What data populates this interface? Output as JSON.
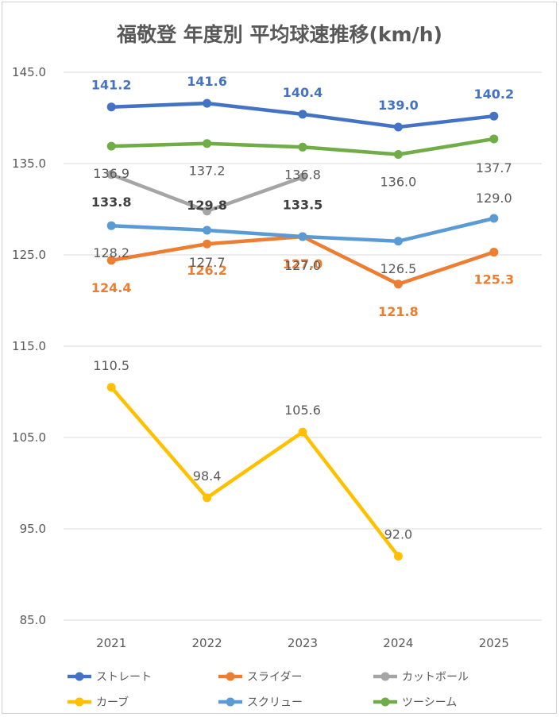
{
  "chart_data": {
    "type": "line",
    "title": "福敬登 年度別 平均球速推移(km/h)",
    "xlabel": "",
    "ylabel": "",
    "categories": [
      "2021",
      "2022",
      "2023",
      "2024",
      "2025"
    ],
    "ylim": [
      85.0,
      145.0
    ],
    "yticks": [
      145.0,
      135.0,
      125.0,
      115.0,
      105.0,
      95.0,
      85.0
    ],
    "ytick_labels": [
      "145.0",
      "135.0",
      "125.0",
      "115.0",
      "105.0",
      "95.0",
      "85.0"
    ],
    "grid": true,
    "legend_position": "bottom",
    "series": [
      {
        "name": "ストレート",
        "color": "#4472C4",
        "values": [
          141.2,
          141.6,
          140.4,
          139.0,
          140.2
        ],
        "labels": [
          "141.2",
          "141.6",
          "140.4",
          "139.0",
          "140.2"
        ]
      },
      {
        "name": "スライダー",
        "color": "#ED7D31",
        "values": [
          124.4,
          126.2,
          127.0,
          121.8,
          125.3
        ],
        "labels": [
          "124.4",
          "126.2",
          "127.0",
          "121.8",
          "125.3"
        ]
      },
      {
        "name": "カットボール",
        "color": "#A5A5A5",
        "values": [
          133.8,
          129.8,
          133.5,
          null,
          null
        ],
        "labels": [
          "133.8",
          "129.8",
          "133.5",
          null,
          null
        ]
      },
      {
        "name": "カーブ",
        "color": "#FFC000",
        "values": [
          110.5,
          98.4,
          105.6,
          92.0,
          null
        ],
        "labels": [
          "110.5",
          "98.4",
          "105.6",
          "92.0",
          null
        ]
      },
      {
        "name": "スクリュー",
        "color": "#5B9BD5",
        "values": [
          128.2,
          127.7,
          127.0,
          126.5,
          129.0
        ],
        "labels": [
          "128.2",
          "127.7",
          "127.0",
          "126.5",
          "129.0"
        ]
      },
      {
        "name": "ツーシーム",
        "color": "#70AD47",
        "values": [
          136.9,
          137.2,
          136.8,
          136.0,
          137.7
        ],
        "labels": [
          "136.9",
          "137.2",
          "136.8",
          "136.0",
          "137.7"
        ]
      }
    ]
  }
}
